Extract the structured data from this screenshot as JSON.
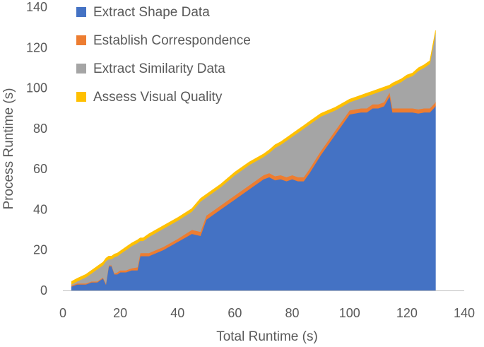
{
  "chart_data": {
    "type": "area",
    "stacked": true,
    "title": "",
    "xlabel": "Total Runtime (s)",
    "ylabel": "Process Runtime (s)",
    "xlim": [
      0,
      140
    ],
    "ylim": [
      0,
      140
    ],
    "xticks": [
      "0",
      "20",
      "40",
      "60",
      "80",
      "100",
      "120",
      "140"
    ],
    "yticks": [
      "0",
      "20",
      "40",
      "60",
      "80",
      "100",
      "120",
      "140"
    ],
    "grid": false,
    "legend_position": "top-left",
    "x": [
      3,
      5,
      8,
      10,
      12,
      14,
      15,
      16,
      17,
      18,
      19,
      20,
      22,
      24,
      26,
      27,
      28,
      30,
      35,
      40,
      45,
      48,
      50,
      55,
      60,
      65,
      70,
      72,
      74,
      76,
      78,
      80,
      82,
      84,
      86,
      90,
      95,
      100,
      104,
      106,
      108,
      110,
      112,
      114,
      115,
      118,
      120,
      122,
      124,
      126,
      128,
      130
    ],
    "series": [
      {
        "name": "Extract Shape Data",
        "color": "#4472C4",
        "values": [
          2,
          3,
          3,
          4,
          4,
          6,
          3,
          12,
          12,
          8,
          8,
          9,
          9,
          10,
          10,
          17,
          17,
          17,
          20,
          24,
          28,
          27,
          35,
          40,
          45,
          50,
          55,
          56,
          54.5,
          55,
          54,
          55,
          54,
          54,
          58,
          67,
          77,
          87,
          88,
          88,
          90,
          90,
          91,
          96,
          88,
          88,
          88,
          88,
          87.5,
          88,
          88,
          91
        ]
      },
      {
        "name": "Establish Correspondence",
        "color": "#ED7D31",
        "values": [
          0.5,
          0.5,
          0.5,
          0.5,
          0.5,
          0.5,
          0.5,
          0.5,
          0.5,
          0.5,
          1,
          1,
          1,
          1,
          1.5,
          1.5,
          1.5,
          1.5,
          1.5,
          1.5,
          2,
          2,
          2,
          2,
          2,
          2,
          2,
          2,
          2,
          2,
          2,
          2,
          2,
          2,
          2,
          2,
          2,
          2,
          2,
          2,
          2,
          2,
          2,
          2,
          2,
          2,
          2,
          2,
          2,
          2,
          2,
          2
        ]
      },
      {
        "name": "Extract Similarity Data",
        "color": "#A5A5A5",
        "values": [
          0.5,
          1,
          3,
          4,
          6,
          6,
          11,
          3,
          3,
          8,
          8,
          8,
          10,
          11,
          12,
          6,
          6,
          8,
          9,
          9,
          9,
          15,
          9,
          9,
          10,
          10,
          9,
          10,
          14,
          15,
          18,
          19,
          22,
          24,
          22,
          17,
          10,
          4,
          5,
          6,
          5,
          6,
          6,
          2,
          11,
          13,
          15,
          16,
          19,
          20,
          22,
          34
        ]
      },
      {
        "name": "Assess Visual Quality",
        "color": "#FFC000",
        "values": [
          1.5,
          1.5,
          1.5,
          1.5,
          1.5,
          1.5,
          1.5,
          1.5,
          1.5,
          1.5,
          1.5,
          1.5,
          1.5,
          1.5,
          1.5,
          1.5,
          1.5,
          1.5,
          1.5,
          1.5,
          1.5,
          1.5,
          1.5,
          1.5,
          1.5,
          1.5,
          1.5,
          1.5,
          1.5,
          1.5,
          1.5,
          1.5,
          1.5,
          1.5,
          1.5,
          1.5,
          1.5,
          1.5,
          1.5,
          1.5,
          1.5,
          1.5,
          1.5,
          1.5,
          1.5,
          1.5,
          1.5,
          1.5,
          1.5,
          1.5,
          1.5,
          1.5
        ]
      }
    ]
  }
}
